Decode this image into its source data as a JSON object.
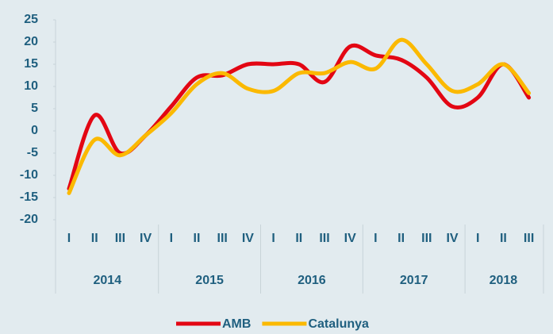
{
  "chart_data": {
    "type": "line",
    "groups": [
      {
        "name": "2014",
        "categories": [
          "I",
          "II",
          "III",
          "IV"
        ]
      },
      {
        "name": "2015",
        "categories": [
          "I",
          "II",
          "III",
          "IV"
        ]
      },
      {
        "name": "2016",
        "categories": [
          "I",
          "II",
          "III",
          "IV"
        ]
      },
      {
        "name": "2017",
        "categories": [
          "I",
          "II",
          "III",
          "IV"
        ]
      },
      {
        "name": "2018",
        "categories": [
          "I",
          "II",
          "III"
        ]
      }
    ],
    "series": [
      {
        "name": "AMB",
        "color": "#e30613",
        "values": [
          -13,
          3.5,
          -5,
          -1,
          5.5,
          12,
          12.5,
          15,
          15,
          15,
          11,
          19,
          17,
          16,
          12,
          5.5,
          7.5,
          15,
          7.5
        ]
      },
      {
        "name": "Catalunya",
        "color": "#fbb900",
        "values": [
          -14,
          -2,
          -5.5,
          -1,
          4,
          10.5,
          13,
          9.5,
          9,
          13,
          13,
          15.5,
          14,
          20.5,
          15,
          9,
          10.5,
          15,
          8.5
        ]
      }
    ],
    "ylim": [
      -20,
      25
    ],
    "yticks": [
      -20,
      -15,
      -10,
      -5,
      0,
      5,
      10,
      15,
      20,
      25
    ],
    "legend": "bottom"
  }
}
